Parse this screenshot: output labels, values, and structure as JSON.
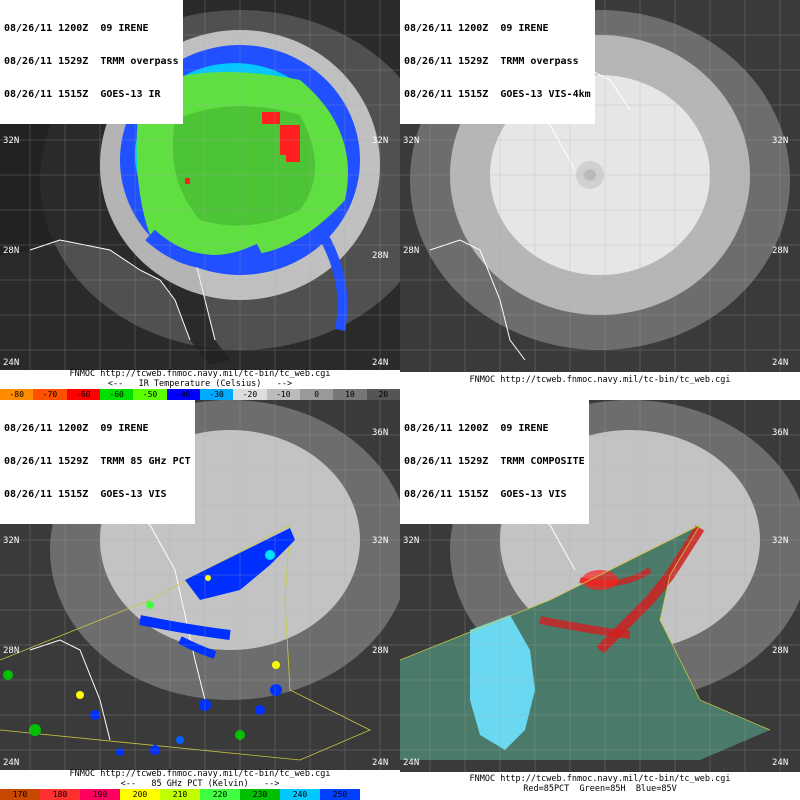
{
  "panels": {
    "ir": {
      "header": [
        "08/26/11 1200Z  09 IRENE",
        "08/26/11 1529Z  TRMM overpass",
        "08/26/11 1515Z  GOES-13 IR"
      ],
      "footer_url": "FNMOC http://tcweb.fnmoc.navy.mil/tc-bin/tc_web.cgi",
      "footer_caption": "<--   IR Temperature (Celsius)   -->",
      "scale": [
        {
          "label": "-80",
          "color": "#ff8c00"
        },
        {
          "label": "-70",
          "color": "#ff5000"
        },
        {
          "label": "-60",
          "color": "#ff0000"
        },
        {
          "label": "-60",
          "color": "#00e000"
        },
        {
          "label": "-50",
          "color": "#5cff00"
        },
        {
          "label": "-40",
          "color": "#0000ff"
        },
        {
          "label": "-30",
          "color": "#00aaff"
        },
        {
          "label": "-20",
          "color": "#dddddd"
        },
        {
          "label": "-10",
          "color": "#bbbbbb"
        },
        {
          "label": "0",
          "color": "#999999"
        },
        {
          "label": "10",
          "color": "#777777"
        },
        {
          "label": "20",
          "color": "#555555"
        }
      ]
    },
    "vis": {
      "header": [
        "08/26/11 1200Z  09 IRENE",
        "08/26/11 1529Z  TRMM overpass",
        "08/26/11 1515Z  GOES-13 VIS-4km"
      ],
      "footer_url": "FNMOC http://tcweb.fnmoc.navy.mil/tc-bin/tc_web.cgi"
    },
    "pct85": {
      "header": [
        "08/26/11 1200Z  09 IRENE",
        "08/26/11 1529Z  TRMM 85 GHz PCT",
        "08/26/11 1515Z  GOES-13 VIS"
      ],
      "footer_url": "FNMOC http://tcweb.fnmoc.navy.mil/tc-bin/tc_web.cgi",
      "footer_caption": "<--   85 GHz PCT (Kelvin)   -->",
      "scale": [
        {
          "label": "170",
          "color": "#c84800"
        },
        {
          "label": "180",
          "color": "#ff3030"
        },
        {
          "label": "190",
          "color": "#ff0060"
        },
        {
          "label": "200",
          "color": "#ffff00"
        },
        {
          "label": "210",
          "color": "#c0ff00"
        },
        {
          "label": "220",
          "color": "#40ff40"
        },
        {
          "label": "230",
          "color": "#00c000"
        },
        {
          "label": "240",
          "color": "#00c8ff"
        },
        {
          "label": "250",
          "color": "#0040ff"
        },
        {
          "label": "",
          "color": "#ffffff"
        }
      ]
    },
    "composite": {
      "header": [
        "08/26/11 1200Z  09 IRENE",
        "08/26/11 1529Z  TRMM COMPOSITE",
        "08/26/11 1515Z  GOES-13 VIS"
      ],
      "footer_url": "FNMOC http://tcweb.fnmoc.navy.mil/tc-bin/tc_web.cgi",
      "footer_caption": "Red=85PCT  Green=85H  Blue=85V"
    }
  },
  "lat_labels": {
    "n36": "36N",
    "n32": "32N",
    "n28": "28N",
    "n24": "24N"
  }
}
